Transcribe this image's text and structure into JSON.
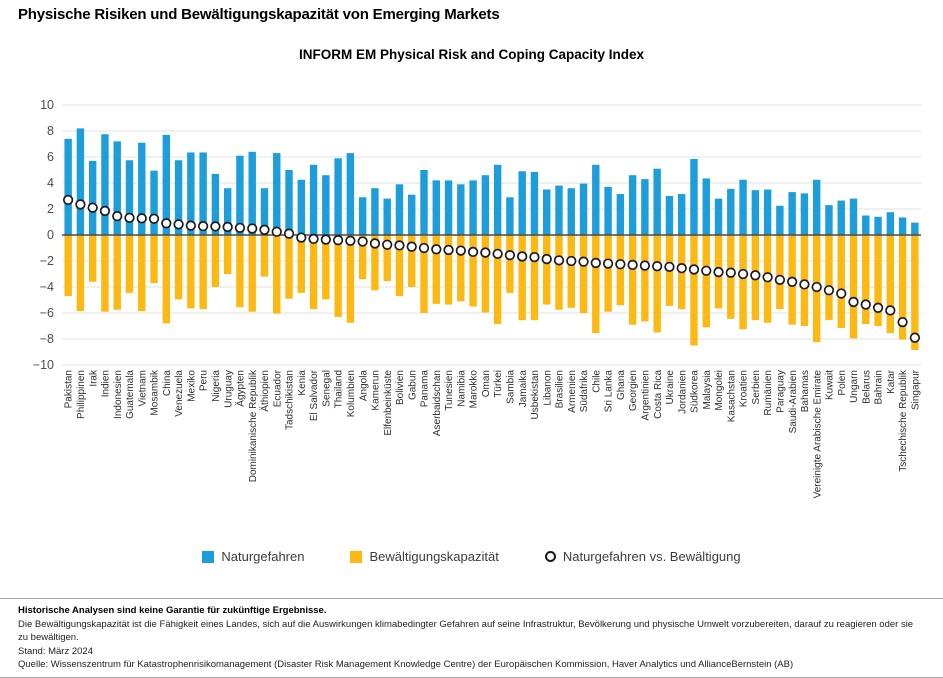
{
  "page": {
    "title": "Physische Risiken und Bewältigungskapazität von Emerging Markets"
  },
  "chart_data": {
    "type": "bar",
    "title": "INFORM EM Physical Risk and Coping Capacity Index",
    "ylim": [
      -10,
      10
    ],
    "yticks": [
      10,
      8,
      6,
      4,
      2,
      0,
      -2,
      -4,
      -6,
      -8,
      -10
    ],
    "grid": true,
    "legend_position": "bottom",
    "colors": {
      "hazard_blue": "#1d9dd9",
      "coping_yellow": "#fdb913",
      "marker_stroke": "#1a1a1a",
      "gridline": "#e0e0e0",
      "zero_line": "#4a4a4a",
      "tick_label": "#4d4d4d",
      "category_label": "#2e2e2e"
    },
    "categories": [
      "Pakistan",
      "Philippinen",
      "Irak",
      "Indien",
      "Indonesien",
      "Guatemala",
      "Vietnam",
      "Mosambik",
      "China",
      "Venezuela",
      "Mexiko",
      "Peru",
      "Nigeria",
      "Uruguay",
      "Ägypten",
      "Dominikanische Republik",
      "Äthiopien",
      "Ecuador",
      "Tadschikistan",
      "Kenia",
      "El Salvador",
      "Senegal",
      "Thailand",
      "Kolumbien",
      "Angola",
      "Kamerun",
      "Elfenbeinküste",
      "Bolivien",
      "Gabun",
      "Panama",
      "Aserbaidschan",
      "Tunesien",
      "Namibia",
      "Marokko",
      "Oman",
      "Türkei",
      "Sambia",
      "Jamaika",
      "Usbekistan",
      "Libanon",
      "Brasilien",
      "Armenien",
      "Südafrika",
      "Chile",
      "Sri Lanka",
      "Ghana",
      "Georgien",
      "Argentinien",
      "Costa Rica",
      "Ukraine",
      "Jordanien",
      "Südkorea",
      "Malaysia",
      "Mongolei",
      "Kasachstan",
      "Kroatien",
      "Serbien",
      "Rumänien",
      "Paraguay",
      "Saudi-Arabien",
      "Bahamas",
      "Vereinigte Arabische Emirate",
      "Kuwait",
      "Polen",
      "Ungarn",
      "Belarus",
      "Bahrain",
      "Katar",
      "Tschechische Republik",
      "Singapur"
    ],
    "series": [
      {
        "name": "Naturgefahren",
        "type": "bar",
        "values": [
          7.4,
          8.2,
          5.7,
          7.75,
          7.2,
          5.75,
          7.1,
          4.95,
          7.7,
          5.75,
          6.35,
          6.35,
          4.7,
          3.6,
          6.1,
          6.4,
          3.6,
          6.3,
          5.0,
          4.25,
          5.4,
          4.6,
          5.9,
          6.3,
          2.9,
          3.6,
          2.8,
          3.9,
          3.1,
          5.0,
          4.2,
          4.2,
          3.9,
          4.2,
          4.6,
          5.4,
          2.9,
          4.9,
          4.85,
          3.5,
          3.8,
          3.6,
          3.95,
          5.4,
          3.7,
          3.15,
          4.6,
          4.3,
          5.1,
          3.0,
          3.15,
          5.85,
          4.35,
          2.8,
          3.55,
          4.25,
          3.45,
          3.5,
          2.25,
          3.3,
          3.2,
          4.25,
          2.3,
          2.65,
          2.8,
          1.5,
          1.4,
          1.75,
          1.35,
          0.95
        ]
      },
      {
        "name": "Bewältigungskapazität",
        "type": "bar",
        "values": [
          -4.7,
          -5.85,
          -3.6,
          -5.9,
          -5.75,
          -4.45,
          -5.85,
          -3.7,
          -6.8,
          -4.95,
          -5.65,
          -5.7,
          -4.0,
          -3.0,
          -5.55,
          -5.9,
          -3.2,
          -6.05,
          -4.9,
          -4.45,
          -5.7,
          -4.95,
          -6.3,
          -6.75,
          -3.4,
          -4.25,
          -3.55,
          -4.7,
          -4.0,
          -6.0,
          -5.3,
          -5.35,
          -5.1,
          -5.5,
          -5.95,
          -6.85,
          -4.45,
          -6.55,
          -6.55,
          -5.35,
          -5.75,
          -5.6,
          -6.0,
          -7.55,
          -5.9,
          -5.4,
          -6.9,
          -6.65,
          -7.5,
          -5.45,
          -5.7,
          -8.5,
          -7.1,
          -5.65,
          -6.45,
          -7.25,
          -6.55,
          -6.75,
          -5.7,
          -6.9,
          -7.0,
          -8.25,
          -6.55,
          -7.15,
          -7.95,
          -6.85,
          -7.0,
          -7.55,
          -8.05,
          -8.85
        ]
      },
      {
        "name": "Naturgefahren vs. Bewältigung",
        "type": "marker",
        "values": [
          2.7,
          2.35,
          2.1,
          1.85,
          1.45,
          1.32,
          1.28,
          1.25,
          0.9,
          0.82,
          0.72,
          0.68,
          0.66,
          0.62,
          0.55,
          0.5,
          0.4,
          0.25,
          0.1,
          -0.2,
          -0.3,
          -0.35,
          -0.4,
          -0.45,
          -0.5,
          -0.65,
          -0.75,
          -0.8,
          -0.9,
          -1.0,
          -1.1,
          -1.15,
          -1.2,
          -1.3,
          -1.35,
          -1.45,
          -1.55,
          -1.65,
          -1.7,
          -1.85,
          -1.95,
          -2.0,
          -2.05,
          -2.15,
          -2.2,
          -2.25,
          -2.3,
          -2.35,
          -2.4,
          -2.45,
          -2.55,
          -2.65,
          -2.75,
          -2.85,
          -2.9,
          -3.0,
          -3.1,
          -3.25,
          -3.45,
          -3.6,
          -3.8,
          -4.0,
          -4.25,
          -4.5,
          -5.15,
          -5.35,
          -5.6,
          -5.8,
          -6.7,
          -7.9
        ]
      }
    ]
  },
  "footer": {
    "disclaimer": "Historische Analysen sind keine Garantie für zukünftige Ergebnisse.",
    "description": "Die Bewältigungskapazität ist die Fähigkeit eines Landes, sich auf die Auswirkungen klimabedingter Gefahren auf seine Infrastruktur, Bevölkerung und physische Umwelt vorzubereiten, darauf zu reagieren oder sie zu bewältigen.",
    "as_of": "Stand: März 2024",
    "source": "Quelle: Wissenszentrum für Katastrophenrisikomanagement (Disaster Risk Management Knowledge Centre) der Europäischen Kommission, Haver Analytics und AllianceBernstein (AB)"
  }
}
